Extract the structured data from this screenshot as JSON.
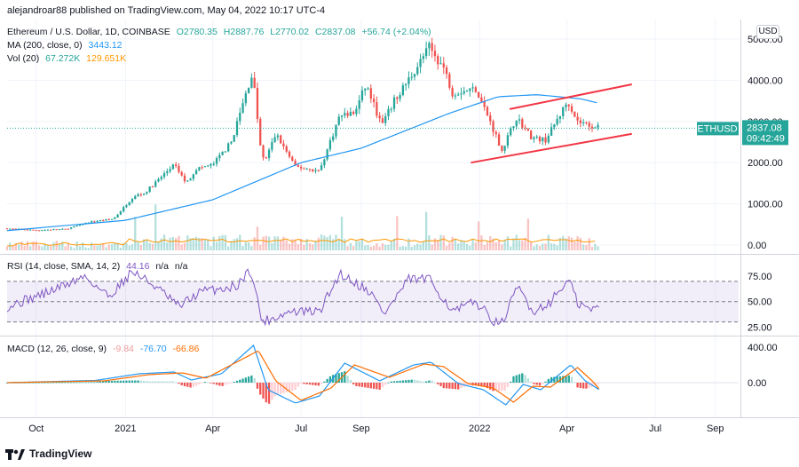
{
  "header": {
    "publish_line": "alejandroar88 published on TradingView.com, May 04, 2022 10:17 UTC-4"
  },
  "legend": {
    "symbol": "Ethereum / U.S. Dollar, 1D, COINBASE",
    "o": "O2780.35",
    "h": "H2887.76",
    "l": "L2770.02",
    "c": "C2837.08",
    "chg": "+56.74 (+2.04%)",
    "ma_label": "MA (200, close, 0)",
    "ma_value": "3443.12",
    "vol_label": "Vol (20)",
    "vol_value1": "67.272K",
    "vol_value2": "129.651K",
    "rsi_label": "RSI (14, close, SMA, 14, 2)",
    "rsi_value": "44.16",
    "rsi_na1": "n/a",
    "rsi_na2": "n/a",
    "macd_label": "MACD (12, 26, close, 9)",
    "macd_hist": "-9.84",
    "macd_line": "-76.70",
    "macd_signal": "-66.86"
  },
  "price_tag": {
    "symbol": "ETHUSD",
    "price": "2837.08",
    "countdown": "09:42:49"
  },
  "currency_button": "USD",
  "footer": {
    "brand": "TradingView"
  },
  "colors": {
    "up": "#26a69a",
    "down": "#ef5350",
    "ma": "#2196f3",
    "vol_ma": "#ff9800",
    "rsi": "#7e57c2",
    "macd": "#2196f3",
    "signal": "#ff6d00",
    "channel": "#f23645",
    "tag": "#26a69a"
  },
  "chart_data": [
    {
      "type": "candlestick",
      "panel": "price",
      "ylim": [
        0,
        5000
      ],
      "yticks": [
        "5000.00",
        "4000.00",
        "3000.00",
        "2000.00",
        "1000.00",
        "0.00"
      ],
      "ytick_values": [
        5000,
        4000,
        3000,
        2000,
        1000,
        0
      ],
      "xticks": [
        "Oct",
        "2021",
        "Apr",
        "Jul",
        "Sep",
        "2022",
        "Apr",
        "Jul",
        "Sep"
      ],
      "xtick_dates": [
        "2020-10-01",
        "2021-01-01",
        "2021-04-01",
        "2021-07-01",
        "2021-09-01",
        "2022-01-01",
        "2022-04-01",
        "2022-07-01",
        "2022-09-01"
      ],
      "x_range": [
        "2020-09-01",
        "2022-09-25"
      ],
      "close_anchors": [
        [
          "2020-09-01",
          400
        ],
        [
          "2020-10-01",
          360
        ],
        [
          "2020-11-01",
          390
        ],
        [
          "2020-11-25",
          560
        ],
        [
          "2020-12-20",
          640
        ],
        [
          "2021-01-10",
          1200
        ],
        [
          "2021-01-20",
          1250
        ],
        [
          "2021-02-20",
          1950
        ],
        [
          "2021-03-05",
          1500
        ],
        [
          "2021-03-15",
          1850
        ],
        [
          "2021-04-01",
          1950
        ],
        [
          "2021-04-20",
          2500
        ],
        [
          "2021-05-12",
          4200
        ],
        [
          "2021-05-20",
          2400
        ],
        [
          "2021-05-24",
          2000
        ],
        [
          "2021-06-05",
          2700
        ],
        [
          "2021-06-25",
          1900
        ],
        [
          "2021-07-20",
          1800
        ],
        [
          "2021-08-10",
          3150
        ],
        [
          "2021-08-25",
          3200
        ],
        [
          "2021-09-06",
          3900
        ],
        [
          "2021-09-22",
          2900
        ],
        [
          "2021-10-05",
          3500
        ],
        [
          "2021-10-25",
          4200
        ],
        [
          "2021-11-10",
          4800
        ],
        [
          "2021-11-25",
          4300
        ],
        [
          "2021-12-04",
          3700
        ],
        [
          "2021-12-28",
          3800
        ],
        [
          "2022-01-10",
          3100
        ],
        [
          "2022-01-24",
          2300
        ],
        [
          "2022-02-08",
          3100
        ],
        [
          "2022-02-24",
          2600
        ],
        [
          "2022-03-10",
          2550
        ],
        [
          "2022-04-02",
          3500
        ],
        [
          "2022-04-12",
          3000
        ],
        [
          "2022-04-26",
          2900
        ],
        [
          "2022-05-04",
          2837
        ]
      ],
      "ma200": [
        [
          "2020-09-01",
          350
        ],
        [
          "2021-01-01",
          600
        ],
        [
          "2021-04-01",
          1100
        ],
        [
          "2021-07-01",
          2000
        ],
        [
          "2021-09-01",
          2350
        ],
        [
          "2021-12-01",
          3200
        ],
        [
          "2022-01-20",
          3600
        ],
        [
          "2022-03-01",
          3650
        ],
        [
          "2022-04-15",
          3550
        ],
        [
          "2022-05-04",
          3443
        ]
      ],
      "channel_upper": [
        [
          "2022-02-01",
          3300
        ],
        [
          "2022-06-07",
          3900
        ]
      ],
      "channel_lower": [
        [
          "2021-12-23",
          2000
        ],
        [
          "2022-06-07",
          2700
        ]
      ],
      "last_price": 2837.08
    },
    {
      "type": "histogram",
      "panel": "volume",
      "series": [
        {
          "name": "Vol (20)",
          "values": [
            67.272,
            129.651
          ]
        }
      ]
    },
    {
      "type": "line",
      "panel": "rsi",
      "ylim": [
        20,
        90
      ],
      "yticks": [
        "75.00",
        "50.00",
        "25.00"
      ],
      "ytick_values": [
        75,
        50,
        25
      ],
      "bands": [
        70,
        50,
        30
      ],
      "anchors": [
        [
          "2020-09-01",
          45
        ],
        [
          "2020-10-15",
          60
        ],
        [
          "2020-11-20",
          75
        ],
        [
          "2020-12-15",
          55
        ],
        [
          "2021-01-08",
          80
        ],
        [
          "2021-02-01",
          65
        ],
        [
          "2021-02-25",
          45
        ],
        [
          "2021-03-20",
          60
        ],
        [
          "2021-04-25",
          65
        ],
        [
          "2021-05-10",
          82
        ],
        [
          "2021-05-22",
          30
        ],
        [
          "2021-06-20",
          40
        ],
        [
          "2021-07-20",
          40
        ],
        [
          "2021-08-10",
          78
        ],
        [
          "2021-09-10",
          60
        ],
        [
          "2021-09-25",
          38
        ],
        [
          "2021-10-20",
          72
        ],
        [
          "2021-11-10",
          72
        ],
        [
          "2021-12-05",
          40
        ],
        [
          "2021-12-28",
          50
        ],
        [
          "2022-01-22",
          25
        ],
        [
          "2022-02-10",
          65
        ],
        [
          "2022-02-25",
          40
        ],
        [
          "2022-03-15",
          50
        ],
        [
          "2022-04-03",
          72
        ],
        [
          "2022-04-12",
          48
        ],
        [
          "2022-04-26",
          42
        ],
        [
          "2022-05-04",
          44
        ]
      ]
    },
    {
      "type": "line",
      "panel": "macd",
      "ylim": [
        -350,
        450
      ],
      "yticks": [
        "400.00",
        "0.00"
      ],
      "ytick_values": [
        400,
        0
      ],
      "macd_anchors": [
        [
          "2020-09-01",
          0
        ],
        [
          "2020-12-01",
          25
        ],
        [
          "2021-01-15",
          100
        ],
        [
          "2021-02-20",
          120
        ],
        [
          "2021-03-10",
          30
        ],
        [
          "2021-04-10",
          100
        ],
        [
          "2021-05-13",
          420
        ],
        [
          "2021-05-28",
          -80
        ],
        [
          "2021-06-25",
          -230
        ],
        [
          "2021-07-20",
          -150
        ],
        [
          "2021-08-15",
          220
        ],
        [
          "2021-09-20",
          20
        ],
        [
          "2021-10-25",
          200
        ],
        [
          "2021-11-12",
          230
        ],
        [
          "2021-12-10",
          -10
        ],
        [
          "2022-01-05",
          -80
        ],
        [
          "2022-01-28",
          -250
        ],
        [
          "2022-02-15",
          -20
        ],
        [
          "2022-03-05",
          -80
        ],
        [
          "2022-04-05",
          200
        ],
        [
          "2022-04-20",
          20
        ],
        [
          "2022-05-04",
          -77
        ]
      ],
      "signal_anchors": [
        [
          "2020-09-01",
          0
        ],
        [
          "2020-12-10",
          20
        ],
        [
          "2021-01-25",
          90
        ],
        [
          "2021-03-01",
          110
        ],
        [
          "2021-03-25",
          50
        ],
        [
          "2021-05-18",
          360
        ],
        [
          "2021-06-05",
          20
        ],
        [
          "2021-07-01",
          -200
        ],
        [
          "2021-08-01",
          -60
        ],
        [
          "2021-08-25",
          200
        ],
        [
          "2021-09-30",
          60
        ],
        [
          "2021-11-05",
          210
        ],
        [
          "2021-11-25",
          180
        ],
        [
          "2021-12-20",
          -10
        ],
        [
          "2022-01-15",
          -60
        ],
        [
          "2022-02-05",
          -220
        ],
        [
          "2022-02-25",
          -40
        ],
        [
          "2022-03-15",
          -50
        ],
        [
          "2022-04-12",
          170
        ],
        [
          "2022-04-28",
          10
        ],
        [
          "2022-05-04",
          -67
        ]
      ]
    }
  ]
}
